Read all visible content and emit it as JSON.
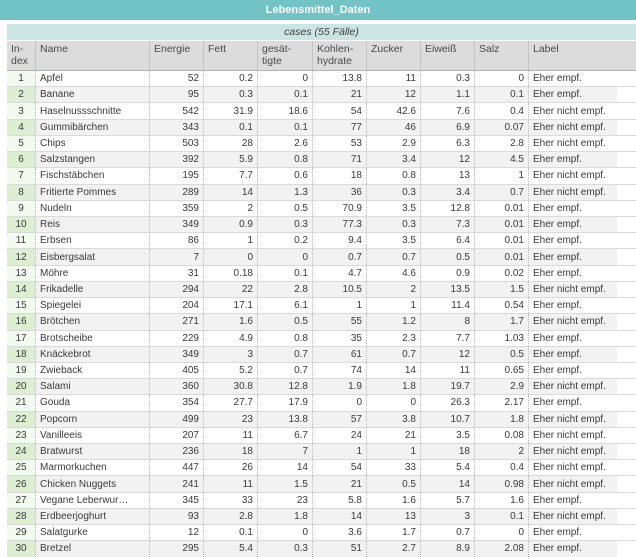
{
  "window": {
    "title": "Lebensmittel_Daten",
    "subtitle": "cases (55 Fälle)"
  },
  "colors": {
    "titlebar_teal": "#72c3c5",
    "cases_band_teal": "#cbe5e2",
    "header_gray": "#dcdcdc",
    "index_odd_green": "#f3faf0",
    "index_even_green": "#ddeed3",
    "row_even_gray": "#f2f2f2",
    "text": "#3a3a3a"
  },
  "table": {
    "columns": [
      {
        "key": "index",
        "label": "In-\ndex",
        "align": "ctr",
        "w": "w-index"
      },
      {
        "key": "name",
        "label": "Name",
        "align": "txt",
        "w": "w-name"
      },
      {
        "key": "energie",
        "label": "Energie",
        "align": "num",
        "w": "w-energie"
      },
      {
        "key": "fett",
        "label": "Fett",
        "align": "num",
        "w": "w-fett"
      },
      {
        "key": "gesaettigte",
        "label": "gesät-\ntigte",
        "align": "num",
        "w": "w-gesaettigte"
      },
      {
        "key": "kohlenhydrate",
        "label": "Kohlen-\nhydrate",
        "align": "num",
        "w": "w-kohlenhydrate"
      },
      {
        "key": "zucker",
        "label": "Zucker",
        "align": "num",
        "w": "w-zucker"
      },
      {
        "key": "eiweiss",
        "label": "Eiweiß",
        "align": "num",
        "w": "w-eiweiss"
      },
      {
        "key": "salz",
        "label": "Salz",
        "align": "num",
        "w": "w-salz"
      },
      {
        "key": "label",
        "label": "Label",
        "align": "txt",
        "w": "w-label"
      }
    ],
    "rows": [
      [
        1,
        "Apfel",
        52,
        0.2,
        0,
        13.8,
        11,
        0.3,
        0,
        "Eher empf."
      ],
      [
        2,
        "Banane",
        95,
        0.3,
        0.1,
        21,
        12,
        1.1,
        0.1,
        "Eher empf."
      ],
      [
        3,
        "Haselnussschnitte",
        542,
        31.9,
        18.6,
        54,
        42.6,
        7.6,
        0.4,
        "Eher nicht empf."
      ],
      [
        4,
        "Gummibärchen",
        343,
        0.1,
        0.1,
        77,
        46,
        6.9,
        0.07,
        "Eher nicht empf."
      ],
      [
        5,
        "Chips",
        503,
        28,
        2.6,
        53,
        2.9,
        6.3,
        2.8,
        "Eher nicht empf."
      ],
      [
        6,
        "Salzstangen",
        392,
        5.9,
        0.8,
        71,
        3.4,
        12,
        4.5,
        "Eher empf."
      ],
      [
        7,
        "Fischstäbchen",
        195,
        7.7,
        0.6,
        18,
        0.8,
        13,
        1,
        "Eher nicht empf."
      ],
      [
        8,
        "Fritierte Pommes",
        289,
        14,
        1.3,
        36,
        0.3,
        3.4,
        0.7,
        "Eher nicht empf."
      ],
      [
        9,
        "Nudeln",
        359,
        2,
        0.5,
        70.9,
        3.5,
        12.8,
        0.01,
        "Eher empf."
      ],
      [
        10,
        "Reis",
        349,
        0.9,
        0.3,
        77.3,
        0.3,
        7.3,
        0.01,
        "Eher empf."
      ],
      [
        11,
        "Erbsen",
        86,
        1,
        0.2,
        9.4,
        3.5,
        6.4,
        0.01,
        "Eher empf."
      ],
      [
        12,
        "Eisbergsalat",
        7,
        0,
        0,
        0.7,
        0.7,
        0.5,
        0.01,
        "Eher empf."
      ],
      [
        13,
        "Möhre",
        31,
        0.18,
        0.1,
        4.7,
        4.6,
        0.9,
        0.02,
        "Eher empf."
      ],
      [
        14,
        "Frikadelle",
        294,
        22,
        2.8,
        10.5,
        2,
        13.5,
        1.5,
        "Eher nicht empf."
      ],
      [
        15,
        "Spiegelei",
        204,
        17.1,
        6.1,
        1,
        1,
        11.4,
        0.54,
        "Eher empf."
      ],
      [
        16,
        "Brötchen",
        271,
        1.6,
        0.5,
        55,
        1.2,
        8,
        1.7,
        "Eher nicht empf."
      ],
      [
        17,
        "Brotscheibe",
        229,
        4.9,
        0.8,
        35,
        2.3,
        7.7,
        1.03,
        "Eher empf."
      ],
      [
        18,
        "Knäckebrot",
        349,
        3,
        0.7,
        61,
        0.7,
        12,
        0.5,
        "Eher empf."
      ],
      [
        19,
        "Zwieback",
        405,
        5.2,
        0.7,
        74,
        14,
        11,
        0.65,
        "Eher empf."
      ],
      [
        20,
        "Salami",
        360,
        30.8,
        12.8,
        1.9,
        1.8,
        19.7,
        2.9,
        "Eher nicht empf."
      ],
      [
        21,
        "Gouda",
        354,
        27.7,
        17.9,
        0,
        0,
        26.3,
        2.17,
        "Eher empf."
      ],
      [
        22,
        "Popcorn",
        499,
        23,
        13.8,
        57,
        3.8,
        10.7,
        1.8,
        "Eher nicht empf."
      ],
      [
        23,
        "Vanilleeis",
        207,
        11,
        6.7,
        24,
        21,
        3.5,
        0.08,
        "Eher nicht empf."
      ],
      [
        24,
        "Bratwurst",
        236,
        18,
        7,
        1,
        1,
        18,
        2,
        "Eher nicht empf."
      ],
      [
        25,
        "Marmorkuchen",
        447,
        26,
        14,
        54,
        33,
        5.4,
        0.4,
        "Eher nicht empf."
      ],
      [
        26,
        "Chicken Nuggets",
        241,
        11,
        1.5,
        21,
        0.5,
        14,
        0.98,
        "Eher nicht empf."
      ],
      [
        27,
        "Vegane Leberwur…",
        345,
        33,
        23,
        5.8,
        1.6,
        5.7,
        1.6,
        "Eher empf."
      ],
      [
        28,
        "Erdbeerjoghurt",
        93,
        2.8,
        1.8,
        14,
        13,
        3,
        0.1,
        "Eher nicht empf."
      ],
      [
        29,
        "Salatgurke",
        12,
        0.1,
        0,
        3.6,
        1.7,
        0.7,
        0,
        "Eher empf."
      ],
      [
        30,
        "Bretzel",
        295,
        5.4,
        0.3,
        51,
        2.7,
        8.9,
        2.08,
        "Eher empf."
      ]
    ]
  }
}
